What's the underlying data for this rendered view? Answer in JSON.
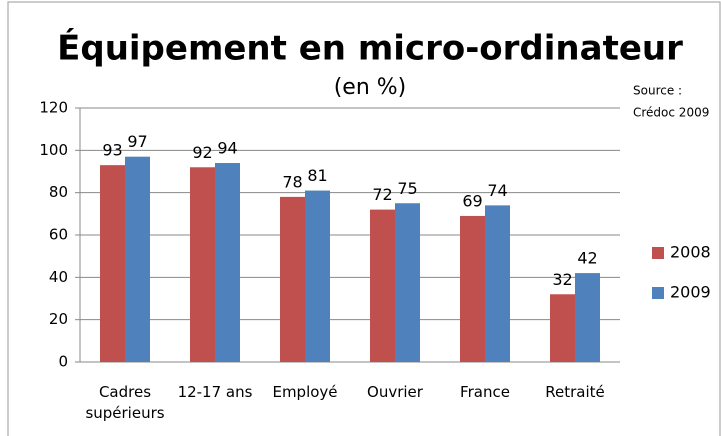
{
  "chart_data": {
    "type": "bar",
    "title": "Équipement en micro-ordinateur",
    "subtitle": "(en %)",
    "annotations": [
      "Source :",
      "Crédoc 2009"
    ],
    "categories": [
      "Cadres supérieurs",
      "12-17 ans",
      "Employé",
      "Ouvrier",
      "France",
      "Retraité"
    ],
    "series": [
      {
        "name": "2008",
        "color": "#c0504d",
        "values": [
          93,
          92,
          78,
          72,
          69,
          32
        ]
      },
      {
        "name": "2009",
        "color": "#4f81bd",
        "values": [
          97,
          94,
          81,
          75,
          74,
          42
        ]
      }
    ],
    "ylim": [
      0,
      120
    ],
    "yticks": [
      0,
      20,
      40,
      60,
      80,
      100,
      120
    ],
    "grid": true,
    "legend": "right"
  }
}
